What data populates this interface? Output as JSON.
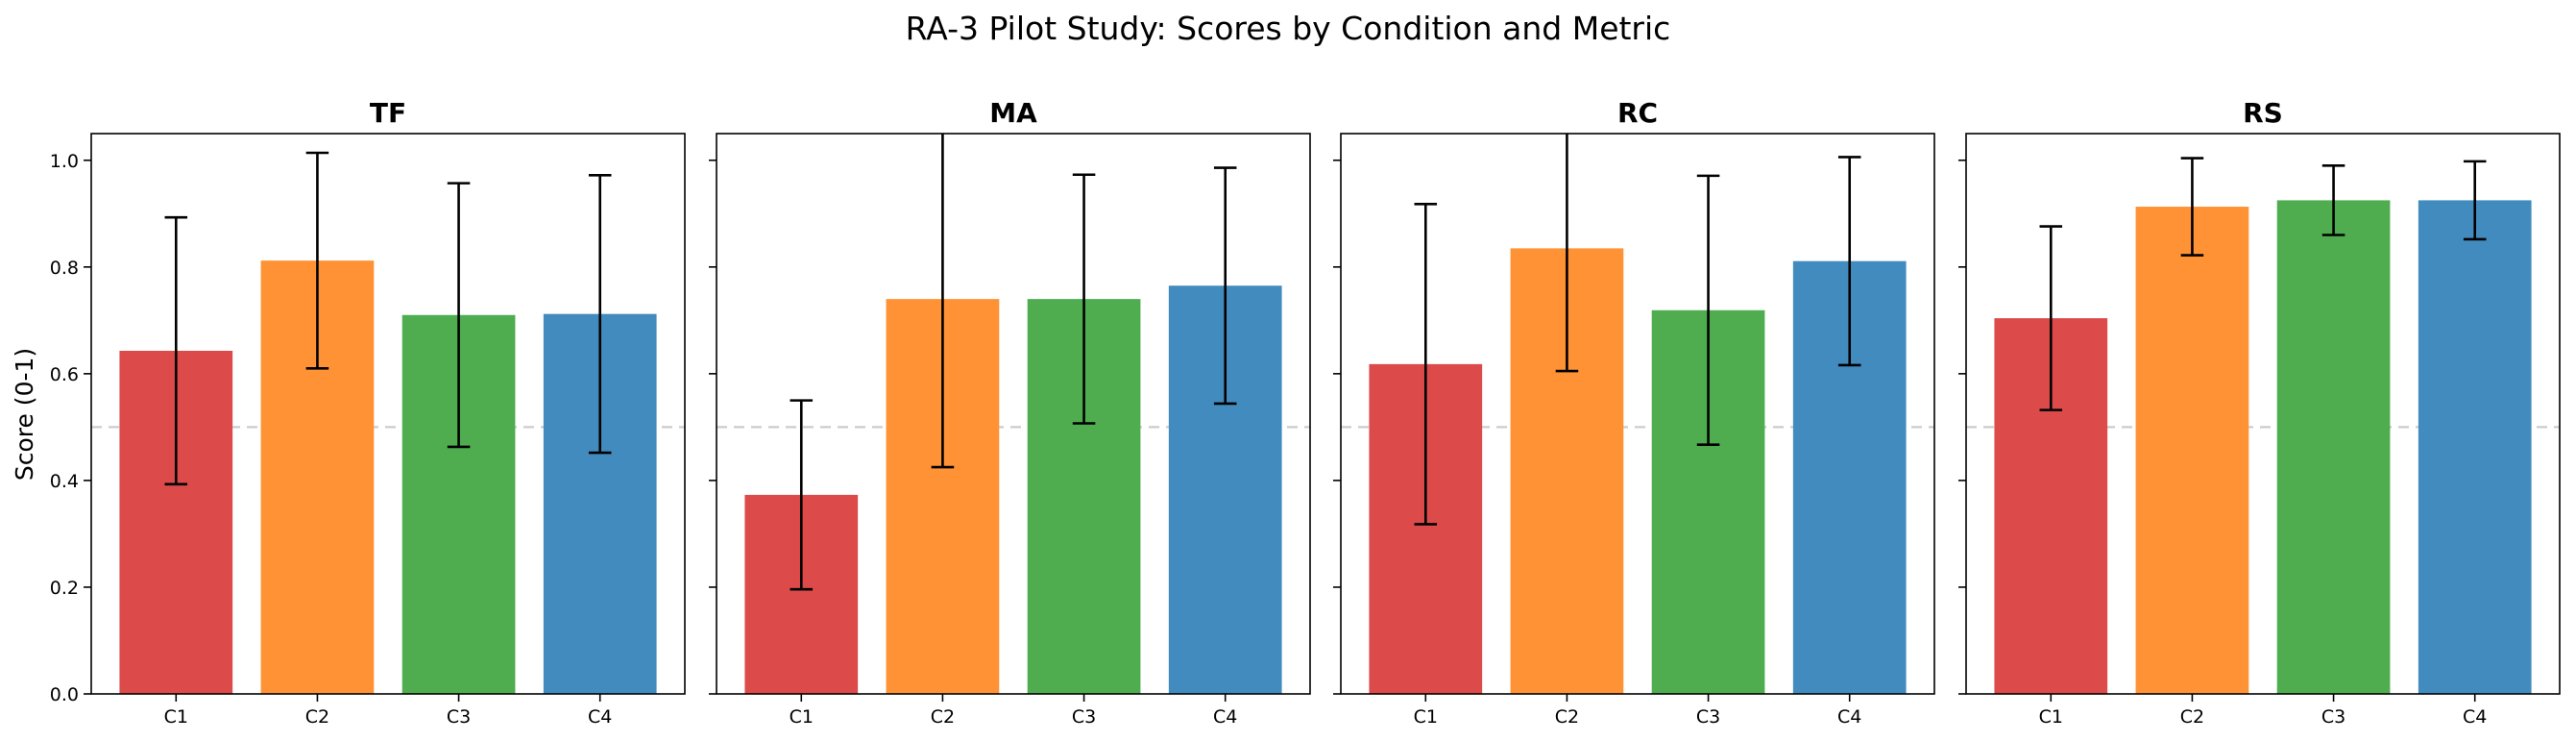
{
  "chart_data": {
    "type": "bar",
    "title": "RA-3 Pilot Study: Scores by Condition and Metric",
    "ylabel": "Score (0-1)",
    "ylim": [
      0,
      1.05
    ],
    "yticks": [
      0.0,
      0.2,
      0.4,
      0.6,
      0.8,
      1.0
    ],
    "ytick_labels": [
      "0.0",
      "0.2",
      "0.4",
      "0.6",
      "0.8",
      "1.0"
    ],
    "reference_line": 0.5,
    "grid": false,
    "categories": [
      "C1",
      "C2",
      "C3",
      "C4"
    ],
    "colors": [
      "#dc4a4a",
      "#ff9234",
      "#4fad50",
      "#428bbf"
    ],
    "panels": [
      {
        "title": "TF",
        "values": [
          0.643,
          0.812,
          0.71,
          0.712
        ],
        "errors": [
          0.25,
          0.202,
          0.247,
          0.26
        ]
      },
      {
        "title": "MA",
        "values": [
          0.373,
          0.74,
          0.74,
          0.765
        ],
        "errors": [
          0.177,
          0.315,
          0.233,
          0.221
        ]
      },
      {
        "title": "RC",
        "values": [
          0.618,
          0.835,
          0.719,
          0.811
        ],
        "errors": [
          0.3,
          0.23,
          0.252,
          0.195
        ]
      },
      {
        "title": "RS",
        "values": [
          0.704,
          0.913,
          0.925,
          0.925
        ],
        "errors": [
          0.172,
          0.091,
          0.065,
          0.073
        ]
      }
    ]
  }
}
